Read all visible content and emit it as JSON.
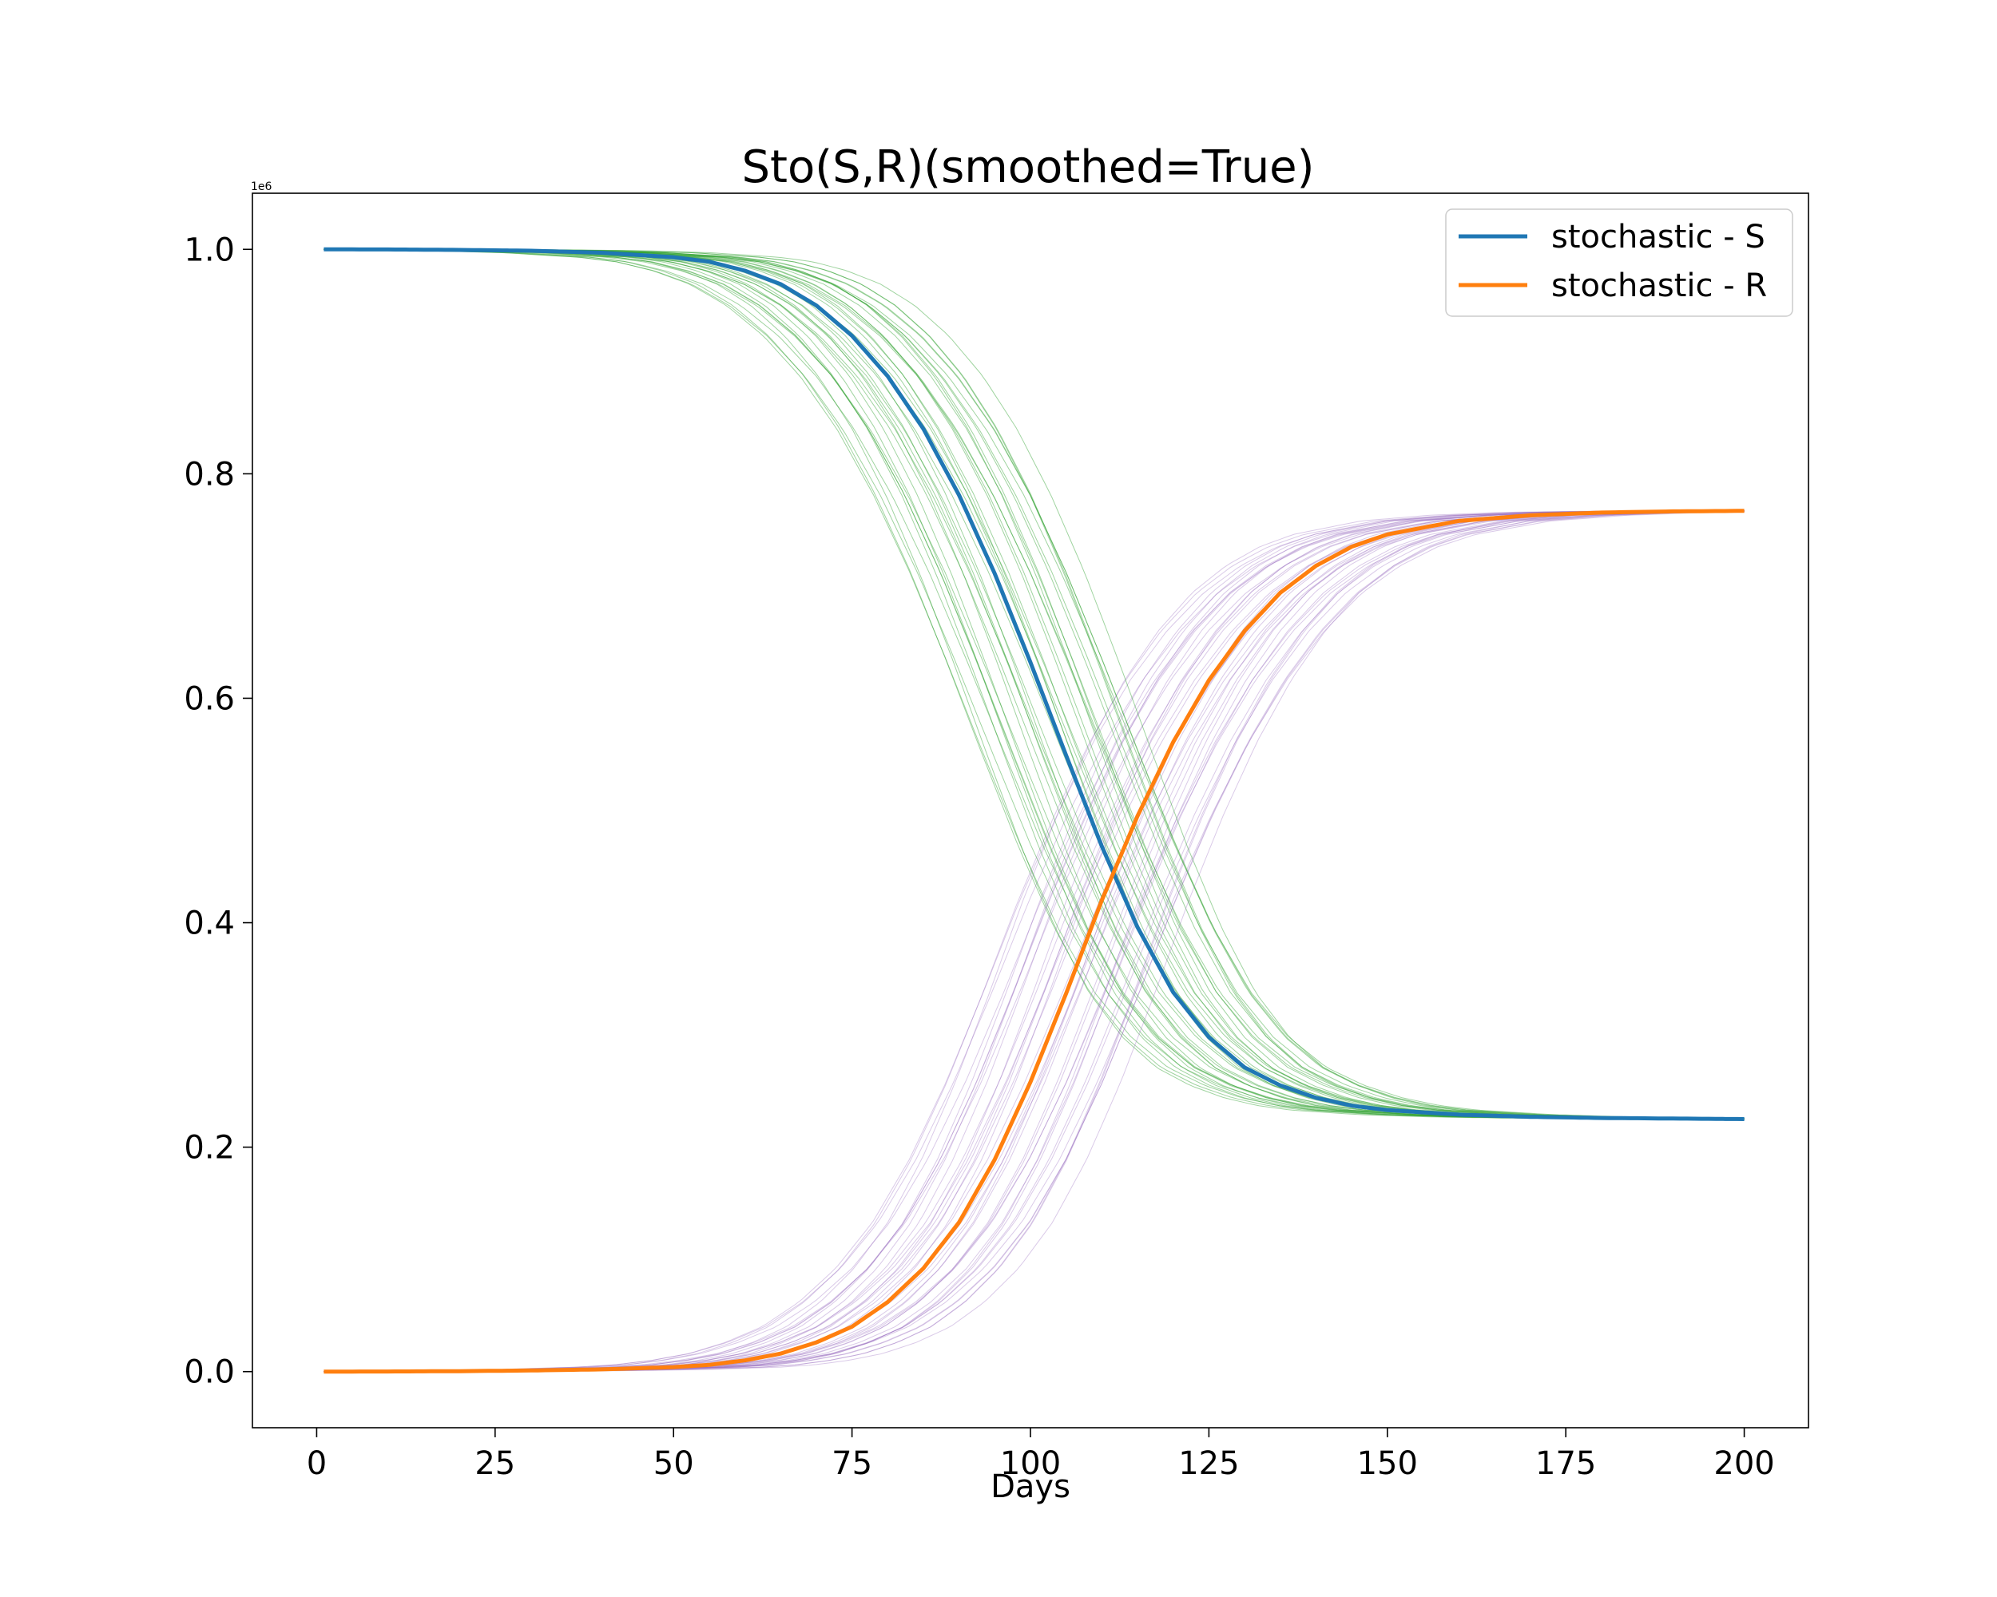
{
  "chart_data": {
    "type": "line",
    "title": "Sto(S,R)(smoothed=True)",
    "xlabel": "Days",
    "ylabel": "",
    "y_offset_label": "1e6",
    "xlim": [
      -9,
      209
    ],
    "ylim": [
      -50000,
      1050000
    ],
    "x_ticks": [
      0,
      25,
      50,
      75,
      100,
      125,
      150,
      175,
      200
    ],
    "x_tick_labels": [
      "0",
      "25",
      "50",
      "75",
      "100",
      "125",
      "150",
      "175",
      "200"
    ],
    "y_ticks": [
      0,
      200000,
      400000,
      600000,
      800000,
      1000000
    ],
    "y_tick_labels": [
      "0.0",
      "0.2",
      "0.4",
      "0.6",
      "0.8",
      "1.0"
    ],
    "grid": false,
    "legend_position": "top-right",
    "series": [
      {
        "name": "stochastic - S",
        "color": "#1f77b4",
        "x": [
          1,
          10,
          20,
          30,
          40,
          50,
          55,
          60,
          65,
          70,
          75,
          80,
          85,
          90,
          95,
          100,
          105,
          110,
          115,
          120,
          125,
          130,
          135,
          140,
          145,
          150,
          160,
          170,
          180,
          190,
          200
        ],
        "y": [
          1000000,
          999900,
          999500,
          998800,
          997000,
          993000,
          989000,
          981000,
          969000,
          950000,
          923000,
          887000,
          840000,
          781000,
          711000,
          632000,
          549000,
          468000,
          396000,
          338000,
          298000,
          271000,
          255000,
          244000,
          237000,
          233000,
          229000,
          227000,
          226000,
          225500,
          225000
        ]
      },
      {
        "name": "stochastic - R",
        "color": "#ff7f0e",
        "x": [
          1,
          10,
          20,
          30,
          40,
          50,
          55,
          60,
          65,
          70,
          75,
          80,
          85,
          90,
          95,
          100,
          105,
          110,
          115,
          120,
          125,
          130,
          135,
          140,
          145,
          150,
          160,
          170,
          180,
          190,
          200
        ],
        "y": [
          0,
          100,
          400,
          1000,
          2000,
          4000,
          6000,
          10000,
          16000,
          26000,
          40000,
          62000,
          92000,
          133000,
          189000,
          258000,
          337000,
          420000,
          495000,
          561000,
          616000,
          660000,
          694000,
          718000,
          735000,
          746000,
          758000,
          763000,
          765500,
          766500,
          767000
        ]
      }
    ],
    "ensemble": {
      "run_count": 40,
      "s_runs_color": "#2ca02c",
      "r_runs_color": "#9467bd"
    }
  }
}
